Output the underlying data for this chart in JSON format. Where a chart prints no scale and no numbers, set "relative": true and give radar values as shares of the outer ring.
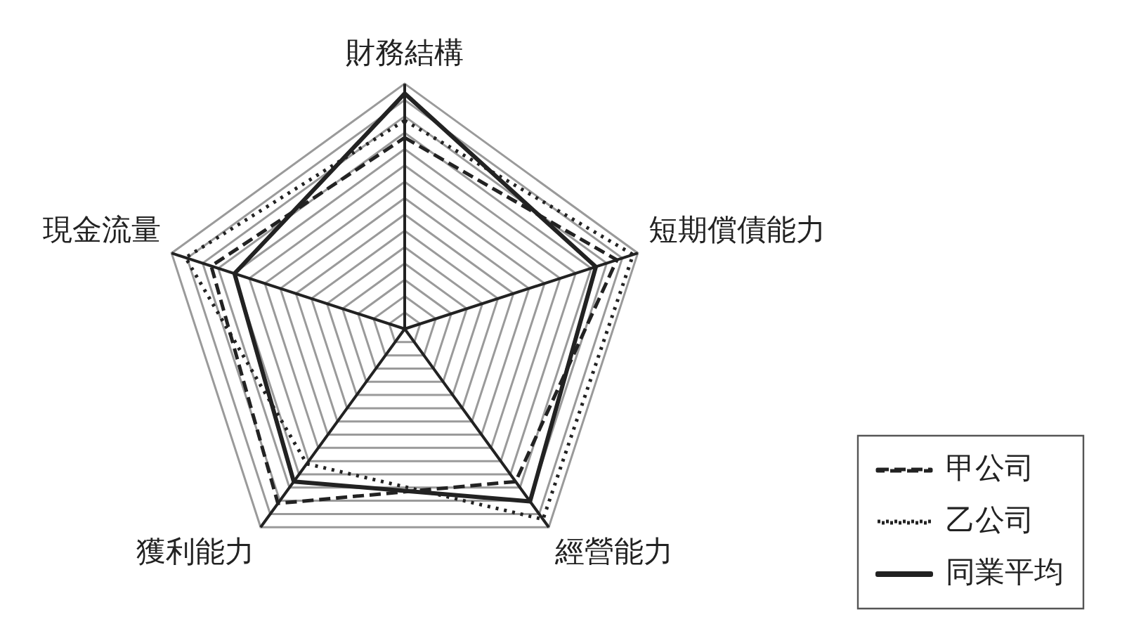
{
  "chart_data": {
    "type": "radar",
    "relative": true,
    "categories": [
      "財務結構",
      "短期償債能力",
      "經營能力",
      "獲利能力",
      "現金流量"
    ],
    "legend": "bottom right",
    "grid": true,
    "marker": "none",
    "series": [
      {
        "name": "甲公司",
        "color": "#222222",
        "line_style": "dashed",
        "values": [
          0.78,
          0.91,
          0.77,
          0.88,
          0.83
        ]
      },
      {
        "name": "乙公司",
        "color": "#222222",
        "line_style": "dotted",
        "values": [
          0.85,
          0.98,
          0.96,
          0.68,
          0.94
        ]
      },
      {
        "name": "同業平均",
        "color": "#222222",
        "line_style": "solid",
        "values": [
          0.96,
          0.82,
          0.87,
          0.77,
          0.73
        ]
      }
    ]
  }
}
